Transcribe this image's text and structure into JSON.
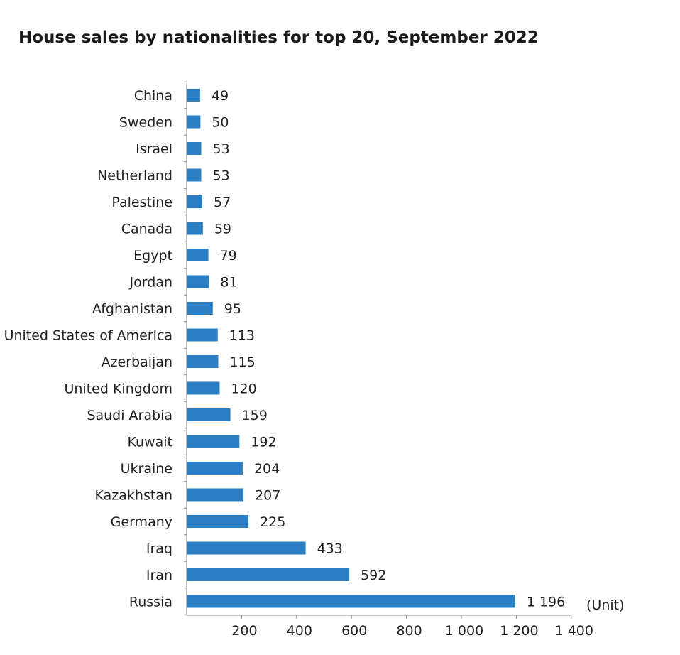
{
  "chart_data": {
    "type": "bar",
    "orientation": "horizontal",
    "title": "House sales by nationalities for top 20, September 2022",
    "unit_label": "(Unit)",
    "bar_color": "#2a7fc4",
    "categories": [
      "China",
      "Sweden",
      "Israel",
      "Netherland",
      "Palestine",
      "Canada",
      "Egypt",
      "Jordan",
      "Afghanistan",
      "United States of America",
      "Azerbaijan",
      "United Kingdom",
      "Saudi Arabia",
      "Kuwait",
      "Ukraine",
      "Kazakhstan",
      "Germany",
      "Iraq",
      "Iran",
      "Russia"
    ],
    "values": [
      49,
      50,
      53,
      53,
      57,
      59,
      79,
      81,
      95,
      113,
      115,
      120,
      159,
      192,
      204,
      207,
      225,
      433,
      592,
      1196
    ],
    "value_labels": [
      "49",
      "50",
      "53",
      "53",
      "57",
      "59",
      "79",
      "81",
      "95",
      "113",
      "115",
      "120",
      "159",
      "192",
      "204",
      "207",
      "225",
      "433",
      "592",
      "1 196"
    ],
    "xlim": [
      0,
      1400
    ],
    "x_ticks": [
      200,
      400,
      600,
      800,
      1000,
      1200,
      1400
    ],
    "x_tick_labels": [
      "200",
      "400",
      "600",
      "800",
      "1 000",
      "1 200",
      "1 400"
    ],
    "grid": false,
    "legend": "none"
  }
}
